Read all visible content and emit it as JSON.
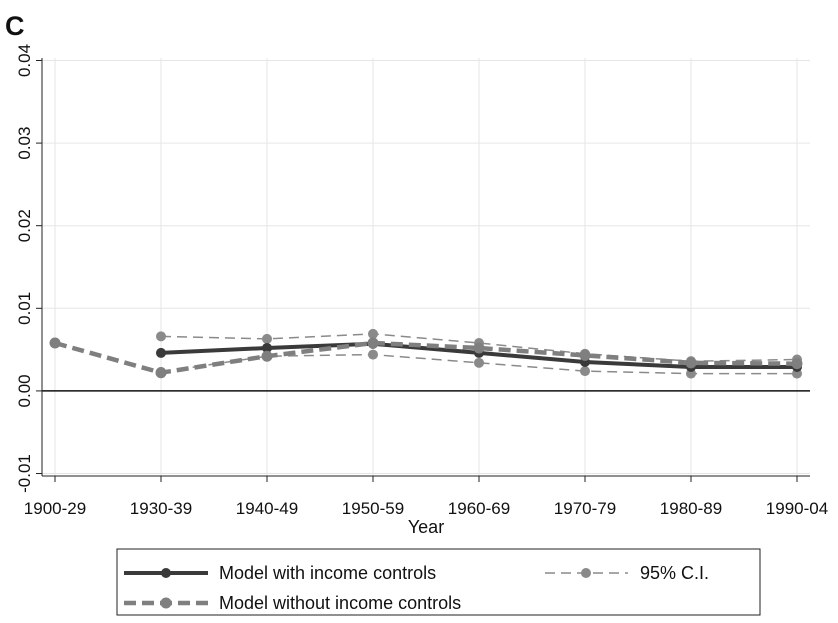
{
  "panel_label": "C",
  "chart_data": {
    "type": "line",
    "xlabel": "Year",
    "ylabel": "",
    "categories": [
      "1900-29",
      "1930-39",
      "1940-49",
      "1950-59",
      "1960-69",
      "1970-79",
      "1980-89",
      "1990-04"
    ],
    "y_ticks": [
      "-0.01",
      "0.00",
      "0.01",
      "0.02",
      "0.03",
      "0.04"
    ],
    "ylim": [
      -0.0103,
      0.0403
    ],
    "reference_line_y": 0,
    "grid": true,
    "legend_position": "bottom",
    "series": [
      {
        "name": "Model with income controls",
        "role": "estimate",
        "values": [
          null,
          0.0046,
          0.0052,
          0.0057,
          0.0046,
          0.0035,
          0.0029,
          0.0029
        ]
      },
      {
        "name": "Model without income controls",
        "role": "estimate",
        "values": [
          0.0058,
          0.0022,
          0.0042,
          0.0058,
          0.0052,
          0.0043,
          0.0034,
          0.0033
        ]
      },
      {
        "name": "95% C.I.",
        "role": "ci_upper",
        "values": [
          null,
          0.0066,
          0.0063,
          0.0069,
          0.0058,
          0.0045,
          0.0036,
          0.0038
        ]
      },
      {
        "name": "",
        "role": "ci_lower",
        "values": [
          null,
          0.0023,
          0.0042,
          0.0044,
          0.0034,
          0.0024,
          0.0021,
          0.0021
        ]
      }
    ],
    "colors": {
      "with_controls": "#3a3a3a",
      "without_controls": "#7f7f7f",
      "ci": "#8a8a8a",
      "grid": "#e6e6e6",
      "axis": "#222222"
    }
  }
}
